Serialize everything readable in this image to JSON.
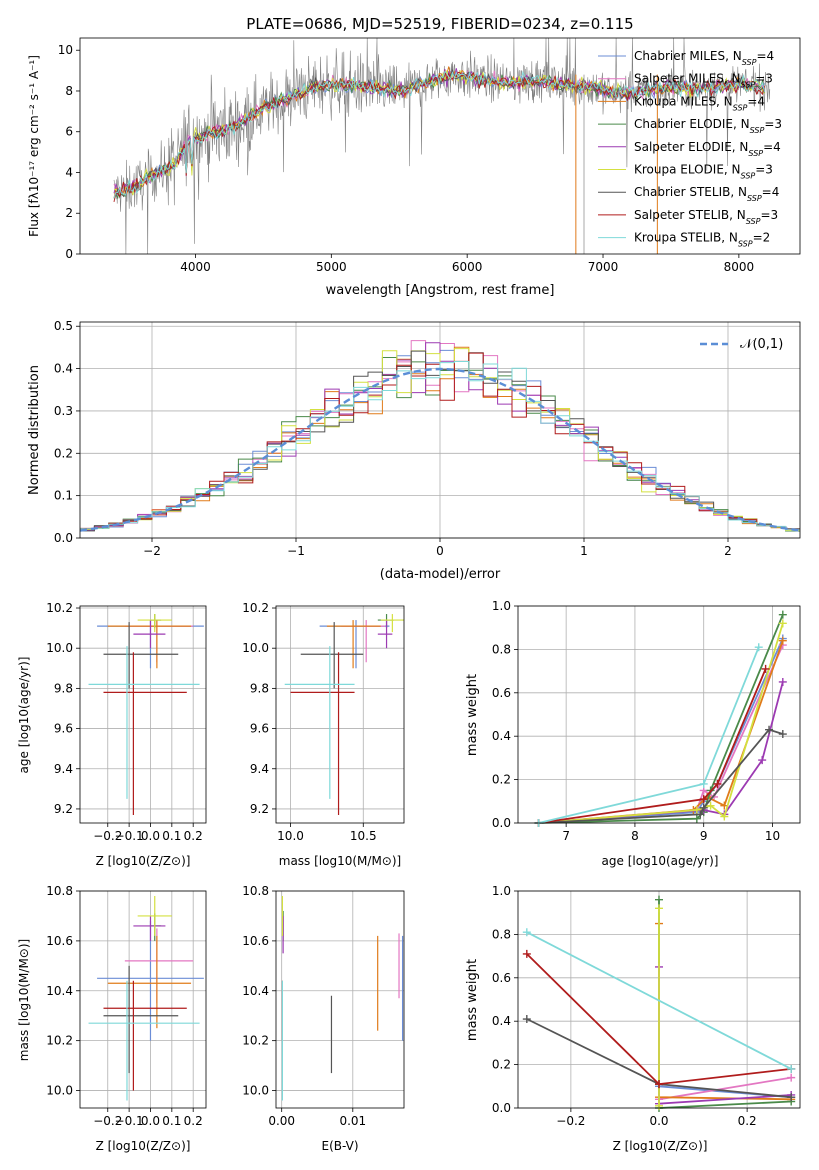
{
  "palette": {
    "Chabrier MILES": "#6b8dd6",
    "Salpeter MILES": "#e377c2",
    "Kroupa MILES": "#e07b1a",
    "Chabrier ELODIE": "#4a8a4a",
    "Salpeter ELODIE": "#9c3ab2",
    "Kroupa ELODIE": "#d4e040",
    "Chabrier STELIB": "#555555",
    "Salpeter STELIB": "#b01c1c",
    "Kroupa STELIB": "#7fd9d9",
    "data": "#808080",
    "normal": "#5b8ed6"
  },
  "chart_data": [
    {
      "id": "spectrum",
      "type": "line",
      "title": "PLATE=0686, MJD=52519, FIBERID=0234, z=0.115",
      "xlabel": "wavelength [Angstrom, rest frame]",
      "ylabel": "Flux [fλ10⁻¹⁷ erg cm⁻² s⁻¹ A⁻¹]",
      "xlim": [
        3150,
        8450
      ],
      "ylim": [
        0,
        10.6
      ],
      "xticks": [
        4000,
        5000,
        6000,
        7000,
        8000
      ],
      "yticks": [
        0,
        2,
        4,
        6,
        8,
        10
      ],
      "legend_position": "top-right",
      "legend": [
        "Chabrier MILES, N_SSP=4",
        "Salpeter MILES, N_SSP=3",
        "Kroupa MILES, N_SSP=4",
        "Chabrier ELODIE, N_SSP=3",
        "Salpeter ELODIE, N_SSP=4",
        "Kroupa ELODIE, N_SSP=3",
        "Chabrier STELIB, N_SSP=4",
        "Salpeter STELIB, N_SSP=3",
        "Kroupa STELIB, N_SSP=2"
      ],
      "continuum": [
        [
          3400,
          3.0
        ],
        [
          3550,
          3.3
        ],
        [
          3700,
          3.9
        ],
        [
          3850,
          4.4
        ],
        [
          3950,
          5.6
        ],
        [
          4100,
          5.9
        ],
        [
          4300,
          6.3
        ],
        [
          4500,
          7.2
        ],
        [
          4700,
          7.7
        ],
        [
          4900,
          8.3
        ],
        [
          5100,
          8.3
        ],
        [
          5300,
          8.2
        ],
        [
          5500,
          8.0
        ],
        [
          5700,
          8.4
        ],
        [
          5900,
          8.8
        ],
        [
          6100,
          8.6
        ],
        [
          6300,
          8.4
        ],
        [
          6500,
          8.5
        ],
        [
          6700,
          8.3
        ],
        [
          6900,
          8.2
        ],
        [
          7100,
          7.9
        ],
        [
          7300,
          8.0
        ],
        [
          7500,
          8.2
        ],
        [
          7700,
          8.1
        ],
        [
          7900,
          8.3
        ],
        [
          8100,
          8.3
        ],
        [
          8200,
          8.2
        ]
      ]
    },
    {
      "id": "residuals",
      "type": "histogram",
      "xlabel": "(data-model)/error",
      "ylabel": "Normed distribution",
      "xlim": [
        -2.5,
        2.5
      ],
      "ylim": [
        0,
        0.51
      ],
      "xticks": [
        -2,
        -1,
        0,
        1,
        2
      ],
      "yticks": [
        0.0,
        0.1,
        0.2,
        0.3,
        0.4,
        0.5
      ],
      "grid": true,
      "legend": [
        "N(0,1)"
      ],
      "legend_position": "top-right",
      "bin_width": 0.1,
      "bins_start": -2.5
    },
    {
      "id": "age_vs_Z",
      "type": "errorbar",
      "xlabel": "Z [log10(Z/Z⊙)]",
      "ylabel": "age  [log10(age/yr)]",
      "xlim": [
        -0.33,
        0.26
      ],
      "ylim": [
        9.13,
        10.21
      ],
      "xticks": [
        -0.2,
        -0.1,
        0.0,
        0.1,
        0.2
      ],
      "yticks": [
        9.2,
        9.4,
        9.6,
        9.8,
        10.0,
        10.2
      ],
      "grid": true
    },
    {
      "id": "age_vs_mass",
      "type": "errorbar",
      "xlabel": "mass [log10(M/M⊙)]",
      "xlim": [
        9.9,
        10.78
      ],
      "ylim": [
        9.13,
        10.21
      ],
      "xticks": [
        10.0,
        10.5
      ],
      "yticks": [
        9.2,
        9.4,
        9.6,
        9.8,
        10.0,
        10.2
      ],
      "grid": true
    },
    {
      "id": "weight_vs_age",
      "type": "line",
      "xlabel": "age  [log10(age/yr)]",
      "ylabel": "mass weight",
      "xlim": [
        6.3,
        10.4
      ],
      "ylim": [
        0,
        1.0
      ],
      "xticks": [
        7,
        8,
        9,
        10
      ],
      "yticks": [
        0.0,
        0.2,
        0.4,
        0.6,
        0.8,
        1.0
      ],
      "grid": true
    },
    {
      "id": "mass_vs_Z",
      "type": "errorbar",
      "xlabel": "Z [log10(Z/Z⊙)]",
      "ylabel": "mass [log10(M/M⊙)]",
      "xlim": [
        -0.33,
        0.26
      ],
      "ylim": [
        9.93,
        10.8
      ],
      "xticks": [
        -0.2,
        -0.1,
        0.0,
        0.1,
        0.2
      ],
      "yticks": [
        10.0,
        10.2,
        10.4,
        10.6,
        10.8
      ],
      "grid": true
    },
    {
      "id": "mass_vs_EBV",
      "type": "errorbar",
      "xlabel": "E(B-V)",
      "xlim": [
        -0.0008,
        0.0172
      ],
      "ylim": [
        9.93,
        10.8
      ],
      "xticks": [
        0.0,
        0.01
      ],
      "yticks": [
        10.0,
        10.2,
        10.4,
        10.6,
        10.8
      ],
      "grid": true
    },
    {
      "id": "weight_vs_Z",
      "type": "line",
      "xlabel": "Z [log10(Z/Z⊙)]",
      "ylabel": "mass weight",
      "xlim": [
        -0.32,
        0.32
      ],
      "ylim": [
        0,
        1.0
      ],
      "xticks": [
        -0.2,
        0.0,
        0.2
      ],
      "yticks": [
        0.0,
        0.2,
        0.4,
        0.6,
        0.8,
        1.0
      ],
      "grid": true
    }
  ],
  "fits": [
    {
      "name": "Chabrier MILES",
      "Z": [
        0.0,
        -0.25,
        0.25
      ],
      "age": [
        10.11,
        9.9,
        10.14
      ],
      "mass": [
        10.45,
        10.2,
        10.68
      ],
      "ebv": 0.017,
      "ebv_m": [
        10.2,
        10.62
      ]
    },
    {
      "name": "Salpeter MILES",
      "Z": [
        0.03,
        -0.12,
        0.2
      ],
      "age": [
        10.11,
        9.93,
        10.14
      ],
      "mass": [
        10.52,
        10.35,
        10.65
      ],
      "ebv": 0.0165,
      "ebv_m": [
        10.37,
        10.63
      ]
    },
    {
      "name": "Kroupa MILES",
      "Z": [
        0.03,
        -0.2,
        0.19
      ],
      "age": [
        10.11,
        9.9,
        10.14
      ],
      "mass": [
        10.43,
        10.25,
        10.62
      ],
      "ebv": 0.0135,
      "ebv_m": [
        10.24,
        10.62
      ]
    },
    {
      "name": "Chabrier ELODIE",
      "Z": [
        0.02,
        0.0,
        0.05
      ],
      "age": [
        10.14,
        10.1,
        10.17
      ],
      "mass": [
        10.66,
        10.6,
        10.71
      ],
      "ebv": 0.0002,
      "ebv_m": [
        10.6,
        10.72
      ]
    },
    {
      "name": "Salpeter ELODIE",
      "Z": [
        0.0,
        -0.08,
        0.07
      ],
      "age": [
        10.07,
        10.0,
        10.14
      ],
      "mass": [
        10.66,
        10.6,
        10.7
      ],
      "ebv": 0.0002,
      "ebv_m": [
        10.55,
        10.7
      ]
    },
    {
      "name": "Kroupa ELODIE",
      "Z": [
        0.02,
        -0.06,
        0.1
      ],
      "age": [
        10.14,
        10.08,
        10.17
      ],
      "mass": [
        10.7,
        10.62,
        10.78
      ],
      "ebv": 0.0001,
      "ebv_m": [
        10.62,
        10.78
      ]
    },
    {
      "name": "Chabrier STELIB",
      "Z": [
        -0.1,
        -0.22,
        0.13
      ],
      "age": [
        9.97,
        9.8,
        10.13
      ],
      "mass": [
        10.3,
        10.07,
        10.5
      ],
      "ebv": 0.007,
      "ebv_m": [
        10.07,
        10.38
      ]
    },
    {
      "name": "Salpeter STELIB",
      "Z": [
        -0.08,
        -0.22,
        0.17
      ],
      "age": [
        9.78,
        9.17,
        9.98
      ],
      "mass": [
        10.33,
        10.0,
        10.44
      ],
      "ebv": 0.0001,
      "ebv_m": [
        10.2,
        10.44
      ]
    },
    {
      "name": "Kroupa STELIB",
      "Z": [
        -0.11,
        -0.29,
        0.23
      ],
      "age": [
        9.82,
        9.25,
        10.01
      ],
      "mass": [
        10.27,
        9.96,
        10.44
      ],
      "ebv": 0.0001,
      "ebv_m": [
        9.96,
        10.44
      ]
    }
  ],
  "weights_age": [
    {
      "name": "Chabrier MILES",
      "pts": [
        [
          6.6,
          0.0
        ],
        [
          8.9,
          0.05
        ],
        [
          9.0,
          0.1
        ],
        [
          9.2,
          0.18
        ],
        [
          10.15,
          0.85
        ]
      ]
    },
    {
      "name": "Salpeter MILES",
      "pts": [
        [
          6.6,
          0.0
        ],
        [
          8.9,
          0.06
        ],
        [
          9.0,
          0.15
        ],
        [
          9.15,
          0.12
        ],
        [
          10.15,
          0.82
        ]
      ]
    },
    {
      "name": "Kroupa MILES",
      "pts": [
        [
          6.6,
          0.0
        ],
        [
          8.85,
          0.06
        ],
        [
          9.05,
          0.12
        ],
        [
          9.3,
          0.08
        ],
        [
          10.15,
          0.84
        ]
      ]
    },
    {
      "name": "Chabrier ELODIE",
      "pts": [
        [
          6.6,
          0.0
        ],
        [
          8.9,
          0.02
        ],
        [
          9.0,
          0.05
        ],
        [
          9.1,
          0.15
        ],
        [
          10.15,
          0.96
        ]
      ]
    },
    {
      "name": "Salpeter ELODIE",
      "pts": [
        [
          6.6,
          0.0
        ],
        [
          9.0,
          0.06
        ],
        [
          9.3,
          0.04
        ],
        [
          9.85,
          0.29
        ],
        [
          10.15,
          0.65
        ]
      ]
    },
    {
      "name": "Kroupa ELODIE",
      "pts": [
        [
          6.6,
          0.0
        ],
        [
          8.9,
          0.06
        ],
        [
          9.1,
          0.08
        ],
        [
          9.3,
          0.03
        ],
        [
          10.15,
          0.92
        ]
      ]
    },
    {
      "name": "Chabrier STELIB",
      "pts": [
        [
          6.6,
          0.0
        ],
        [
          8.95,
          0.04
        ],
        [
          9.0,
          0.07
        ],
        [
          9.95,
          0.43
        ],
        [
          10.15,
          0.41
        ]
      ]
    },
    {
      "name": "Salpeter STELIB",
      "pts": [
        [
          6.6,
          0.0
        ],
        [
          9.0,
          0.11
        ],
        [
          9.2,
          0.18
        ],
        [
          9.9,
          0.71
        ]
      ]
    },
    {
      "name": "Kroupa STELIB",
      "pts": [
        [
          6.6,
          0.0
        ],
        [
          9.0,
          0.18
        ],
        [
          9.8,
          0.81
        ]
      ]
    }
  ],
  "weights_Z": [
    {
      "name": "Chabrier MILES",
      "pts": [
        [
          0.0,
          0.1
        ],
        [
          0.3,
          0.05
        ]
      ]
    },
    {
      "name": "Salpeter MILES",
      "pts": [
        [
          0.0,
          0.04
        ],
        [
          0.3,
          0.14
        ]
      ]
    },
    {
      "name": "Kroupa MILES",
      "pts": [
        [
          0.0,
          0.85
        ],
        [
          0.0,
          0.05
        ],
        [
          0.3,
          0.04
        ]
      ]
    },
    {
      "name": "Chabrier ELODIE",
      "pts": [
        [
          0.0,
          0.96
        ],
        [
          0.0,
          0.0
        ],
        [
          0.3,
          0.03
        ]
      ]
    },
    {
      "name": "Salpeter ELODIE",
      "pts": [
        [
          0.0,
          0.65
        ],
        [
          0.0,
          0.02
        ],
        [
          0.3,
          0.06
        ]
      ]
    },
    {
      "name": "Kroupa ELODIE",
      "pts": [
        [
          0.0,
          0.92
        ],
        [
          0.0,
          0.01
        ]
      ]
    },
    {
      "name": "Chabrier STELIB",
      "pts": [
        [
          -0.3,
          0.41
        ],
        [
          0.0,
          0.11
        ],
        [
          0.3,
          0.05
        ]
      ]
    },
    {
      "name": "Salpeter STELIB",
      "pts": [
        [
          -0.3,
          0.71
        ],
        [
          0.0,
          0.11
        ],
        [
          0.3,
          0.18
        ]
      ]
    },
    {
      "name": "Kroupa STELIB",
      "pts": [
        [
          -0.3,
          0.81
        ],
        [
          0.3,
          0.18
        ]
      ]
    }
  ]
}
